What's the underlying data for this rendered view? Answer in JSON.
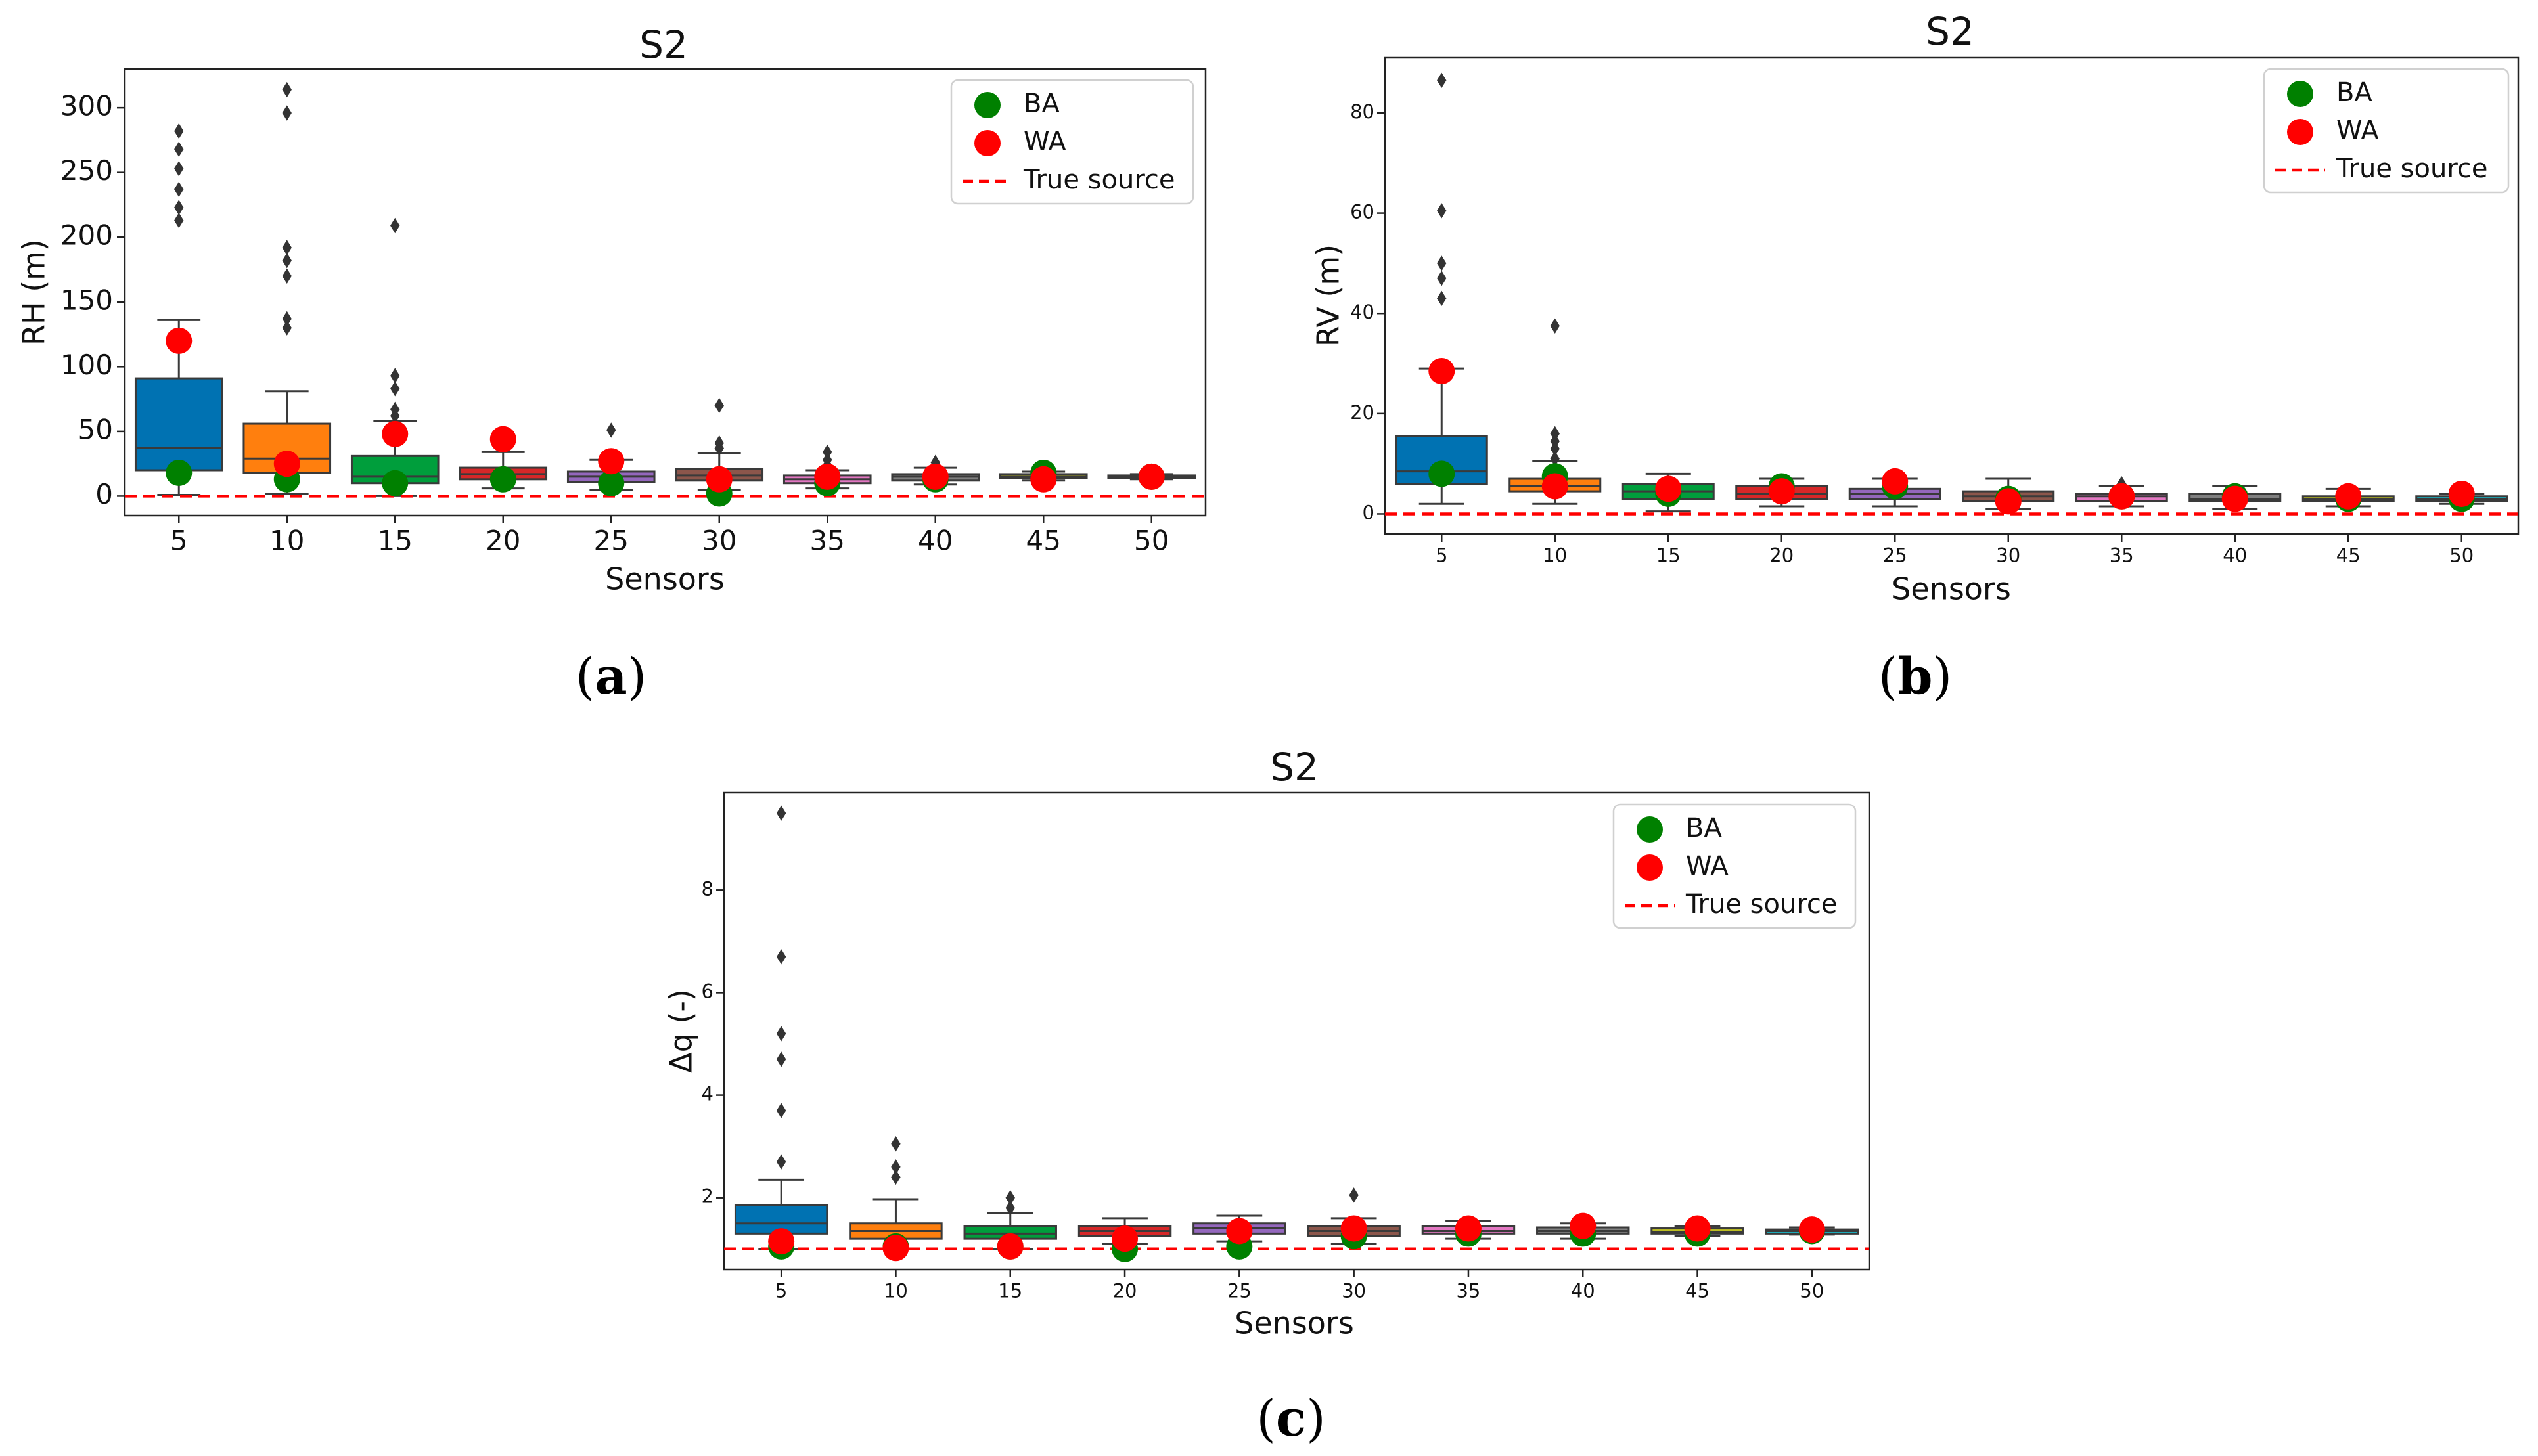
{
  "figure": {
    "captions": [
      {
        "open": "(",
        "letter": "a",
        "close": ")"
      },
      {
        "open": "(",
        "letter": "b",
        "close": ")"
      },
      {
        "open": "(",
        "letter": "c",
        "close": ")"
      }
    ]
  },
  "chart_data": [
    {
      "type": "box",
      "title": "S2",
      "xlabel": "Sensors",
      "ylabel": "RH (m)",
      "categories": [
        "5",
        "10",
        "15",
        "20",
        "25",
        "30",
        "35",
        "40",
        "45",
        "50"
      ],
      "ylim": [
        -15,
        330
      ],
      "yticks": [
        0,
        50,
        100,
        150,
        200,
        250,
        300
      ],
      "ytick_labels": [
        "0",
        "50",
        "100",
        "150",
        "200",
        "250",
        "300"
      ],
      "boxes": [
        {
          "q1": 20,
          "median": 37,
          "q3": 91,
          "wl": 1,
          "wh": 136,
          "color": "#0072b2",
          "fliers": [
            213,
            223,
            237,
            253,
            268,
            282
          ]
        },
        {
          "q1": 18,
          "median": 29,
          "q3": 56,
          "wl": 2,
          "wh": 81,
          "color": "#ff7f0e",
          "fliers": [
            130,
            137,
            170,
            182,
            192,
            296,
            314
          ]
        },
        {
          "q1": 10,
          "median": 15,
          "q3": 31,
          "wl": 0,
          "wh": 58,
          "color": "#009e3c",
          "fliers": [
            62,
            67,
            83,
            93,
            209
          ]
        },
        {
          "q1": 13,
          "median": 17,
          "q3": 22,
          "wl": 6,
          "wh": 34,
          "color": "#d62728",
          "fliers": []
        },
        {
          "q1": 11,
          "median": 15,
          "q3": 19,
          "wl": 5,
          "wh": 28,
          "color": "#9467bd",
          "fliers": [
            51
          ]
        },
        {
          "q1": 12,
          "median": 16,
          "q3": 21,
          "wl": 5,
          "wh": 33,
          "color": "#8c564b",
          "fliers": [
            37,
            41,
            70
          ]
        },
        {
          "q1": 10,
          "median": 13,
          "q3": 16,
          "wl": 6,
          "wh": 20,
          "color": "#e377c2",
          "fliers": [
            24,
            28,
            34
          ]
        },
        {
          "q1": 12,
          "median": 15,
          "q3": 17,
          "wl": 9,
          "wh": 22,
          "color": "#7f7f7f",
          "fliers": [
            26
          ]
        },
        {
          "q1": 14,
          "median": 15,
          "q3": 17,
          "wl": 12,
          "wh": 19,
          "color": "#bcbd22",
          "fliers": []
        },
        {
          "q1": 14,
          "median": 15,
          "q3": 16,
          "wl": 13,
          "wh": 17,
          "color": "#17becf",
          "fliers": []
        }
      ],
      "ba": [
        18,
        13,
        10,
        13,
        10,
        2,
        10,
        13,
        18,
        15
      ],
      "wa": [
        120,
        25,
        48,
        44,
        27,
        13,
        15,
        15,
        13,
        15
      ],
      "true_source": 0,
      "legend": {
        "position": "top-right",
        "entries": [
          "BA",
          "WA",
          "True source"
        ]
      }
    },
    {
      "type": "box",
      "title": "S2",
      "xlabel": "Sensors",
      "ylabel": "RV (m)",
      "categories": [
        "5",
        "10",
        "15",
        "20",
        "25",
        "30",
        "35",
        "40",
        "45",
        "50"
      ],
      "ylim": [
        -4,
        91
      ],
      "yticks": [
        0,
        20,
        40,
        60,
        80
      ],
      "ytick_labels": [
        "0",
        "20",
        "40",
        "60",
        "80"
      ],
      "boxes": [
        {
          "q1": 6,
          "median": 8.5,
          "q3": 15.5,
          "wl": 2,
          "wh": 29,
          "color": "#0072b2",
          "fliers": [
            43,
            47,
            50,
            60.5,
            86.5
          ]
        },
        {
          "q1": 4.5,
          "median": 5.5,
          "q3": 7,
          "wl": 2,
          "wh": 10.5,
          "color": "#ff7f0e",
          "fliers": [
            11,
            13,
            14.5,
            16,
            37.5
          ]
        },
        {
          "q1": 3,
          "median": 4.5,
          "q3": 6,
          "wl": 0.5,
          "wh": 8,
          "color": "#009e3c",
          "fliers": []
        },
        {
          "q1": 3,
          "median": 4,
          "q3": 5.5,
          "wl": 1.5,
          "wh": 7,
          "color": "#d62728",
          "fliers": []
        },
        {
          "q1": 3,
          "median": 4,
          "q3": 5,
          "wl": 1.5,
          "wh": 7,
          "color": "#9467bd",
          "fliers": []
        },
        {
          "q1": 2.5,
          "median": 3.5,
          "q3": 4.5,
          "wl": 1,
          "wh": 7,
          "color": "#8c564b",
          "fliers": []
        },
        {
          "q1": 2.5,
          "median": 3.5,
          "q3": 4,
          "wl": 1.5,
          "wh": 5.5,
          "color": "#e377c2",
          "fliers": [
            6
          ]
        },
        {
          "q1": 2.5,
          "median": 3,
          "q3": 4,
          "wl": 1,
          "wh": 5.5,
          "color": "#7f7f7f",
          "fliers": []
        },
        {
          "q1": 2.5,
          "median": 3,
          "q3": 3.5,
          "wl": 1.5,
          "wh": 5,
          "color": "#bcbd22",
          "fliers": []
        },
        {
          "q1": 2.5,
          "median": 3,
          "q3": 3.5,
          "wl": 2,
          "wh": 4,
          "color": "#17becf",
          "fliers": []
        }
      ],
      "ba": [
        8,
        7.5,
        4,
        5.5,
        5.5,
        3,
        3.5,
        3.5,
        3,
        3
      ],
      "wa": [
        28.5,
        5.5,
        5,
        4.5,
        6.5,
        2.5,
        3.5,
        3,
        3.5,
        4
      ],
      "true_source": 0,
      "legend": {
        "position": "top-right",
        "entries": [
          "BA",
          "WA",
          "True source"
        ]
      }
    },
    {
      "type": "box",
      "title": "S2",
      "xlabel": "Sensors",
      "ylabel": "Δq (-)",
      "categories": [
        "5",
        "10",
        "15",
        "20",
        "25",
        "30",
        "35",
        "40",
        "45",
        "50"
      ],
      "ylim": [
        0.6,
        9.9
      ],
      "yticks": [
        2,
        4,
        6,
        8
      ],
      "ytick_labels": [
        "2",
        "4",
        "6",
        "8"
      ],
      "boxes": [
        {
          "q1": 1.3,
          "median": 1.5,
          "q3": 1.85,
          "wl": 1.0,
          "wh": 2.35,
          "color": "#0072b2",
          "fliers": [
            2.7,
            3.7,
            4.7,
            5.2,
            6.7,
            9.5
          ]
        },
        {
          "q1": 1.2,
          "median": 1.35,
          "q3": 1.5,
          "wl": 1.0,
          "wh": 1.97,
          "color": "#ff7f0e",
          "fliers": [
            2.4,
            2.6,
            3.05
          ]
        },
        {
          "q1": 1.2,
          "median": 1.3,
          "q3": 1.45,
          "wl": 1.0,
          "wh": 1.7,
          "color": "#009e3c",
          "fliers": [
            1.8,
            2.0
          ]
        },
        {
          "q1": 1.25,
          "median": 1.35,
          "q3": 1.45,
          "wl": 1.1,
          "wh": 1.6,
          "color": "#d62728",
          "fliers": []
        },
        {
          "q1": 1.3,
          "median": 1.4,
          "q3": 1.5,
          "wl": 1.15,
          "wh": 1.65,
          "color": "#9467bd",
          "fliers": []
        },
        {
          "q1": 1.25,
          "median": 1.35,
          "q3": 1.45,
          "wl": 1.1,
          "wh": 1.6,
          "color": "#8c564b",
          "fliers": [
            2.05
          ]
        },
        {
          "q1": 1.3,
          "median": 1.35,
          "q3": 1.45,
          "wl": 1.2,
          "wh": 1.55,
          "color": "#e377c2",
          "fliers": []
        },
        {
          "q1": 1.3,
          "median": 1.35,
          "q3": 1.42,
          "wl": 1.2,
          "wh": 1.5,
          "color": "#7f7f7f",
          "fliers": []
        },
        {
          "q1": 1.3,
          "median": 1.33,
          "q3": 1.4,
          "wl": 1.25,
          "wh": 1.45,
          "color": "#bcbd22",
          "fliers": []
        },
        {
          "q1": 1.3,
          "median": 1.35,
          "q3": 1.38,
          "wl": 1.28,
          "wh": 1.42,
          "color": "#17becf",
          "fliers": []
        }
      ],
      "ba": [
        1.05,
        1.05,
        1.05,
        1.0,
        1.05,
        1.25,
        1.3,
        1.3,
        1.3,
        1.35
      ],
      "wa": [
        1.15,
        1.02,
        1.05,
        1.2,
        1.35,
        1.4,
        1.4,
        1.45,
        1.4,
        1.38
      ],
      "true_source": 1,
      "legend": {
        "position": "top-right",
        "entries": [
          "BA",
          "WA",
          "True source"
        ]
      }
    }
  ]
}
